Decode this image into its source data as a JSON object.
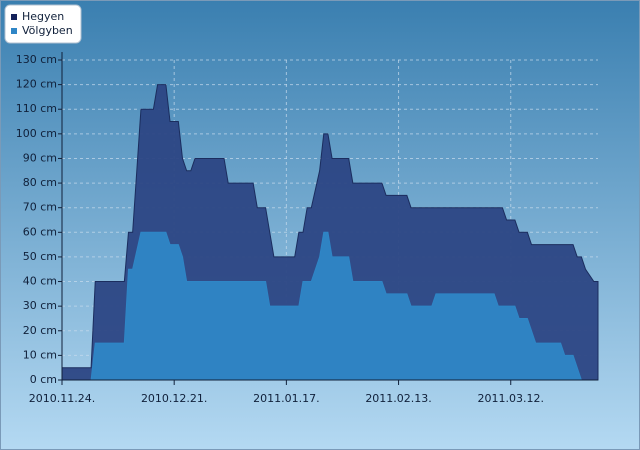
{
  "chart_data": {
    "type": "area",
    "x": [
      "2010-11-24",
      "2010-12-01",
      "2010-12-02",
      "2010-12-09",
      "2010-12-10",
      "2010-12-11",
      "2010-12-13",
      "2010-12-16",
      "2010-12-17",
      "2010-12-19",
      "2010-12-20",
      "2010-12-22",
      "2010-12-23",
      "2010-12-24",
      "2010-12-25",
      "2010-12-26",
      "2011-01-02",
      "2011-01-03",
      "2011-01-09",
      "2011-01-10",
      "2011-01-12",
      "2011-01-13",
      "2011-01-14",
      "2011-01-19",
      "2011-01-20",
      "2011-01-21",
      "2011-01-22",
      "2011-01-23",
      "2011-01-25",
      "2011-01-26",
      "2011-01-27",
      "2011-01-28",
      "2011-02-01",
      "2011-02-02",
      "2011-02-09",
      "2011-02-10",
      "2011-02-15",
      "2011-02-16",
      "2011-02-21",
      "2011-02-22",
      "2011-03-08",
      "2011-03-09",
      "2011-03-10",
      "2011-03-11",
      "2011-03-13",
      "2011-03-14",
      "2011-03-16",
      "2011-03-17",
      "2011-03-18",
      "2011-03-24",
      "2011-03-25",
      "2011-03-27",
      "2011-03-28",
      "2011-03-29",
      "2011-03-30",
      "2011-04-01",
      "2011-04-02"
    ],
    "series": [
      {
        "name": "Hegyen",
        "color": "#2c4684",
        "values": [
          5,
          5,
          40,
          40,
          60,
          60,
          110,
          110,
          120,
          120,
          105,
          105,
          90,
          85,
          85,
          90,
          90,
          80,
          80,
          70,
          70,
          60,
          50,
          50,
          60,
          60,
          70,
          70,
          85,
          100,
          100,
          90,
          90,
          80,
          80,
          75,
          75,
          70,
          70,
          70,
          70,
          70,
          70,
          65,
          65,
          60,
          60,
          55,
          55,
          55,
          55,
          55,
          50,
          50,
          45,
          40,
          40
        ]
      },
      {
        "name": "Völgyben",
        "color": "#2f86c6",
        "values": [
          0,
          0,
          15,
          15,
          45,
          45,
          60,
          60,
          60,
          60,
          55,
          55,
          50,
          40,
          40,
          40,
          40,
          40,
          40,
          40,
          40,
          30,
          30,
          30,
          30,
          40,
          40,
          40,
          50,
          60,
          60,
          50,
          50,
          40,
          40,
          35,
          35,
          30,
          30,
          35,
          35,
          30,
          30,
          30,
          30,
          25,
          25,
          20,
          15,
          15,
          10,
          10,
          5,
          0,
          0,
          0,
          0
        ]
      }
    ],
    "xlim": [
      "2010-11-24",
      "2011-04-02"
    ],
    "xticks": [
      {
        "value": "2010-11-24",
        "label": "2010.11.24."
      },
      {
        "value": "2010-12-21",
        "label": "2010.12.21."
      },
      {
        "value": "2011-01-17",
        "label": "2011.01.17."
      },
      {
        "value": "2011-02-13",
        "label": "2011.02.13."
      },
      {
        "value": "2011-03-12",
        "label": "2011.03.12."
      }
    ],
    "ylim": [
      0,
      130
    ],
    "yticks": [
      {
        "value": 0,
        "label": "0 cm"
      },
      {
        "value": 10,
        "label": "10 cm"
      },
      {
        "value": 20,
        "label": "20 cm"
      },
      {
        "value": 30,
        "label": "30 cm"
      },
      {
        "value": 40,
        "label": "40 cm"
      },
      {
        "value": 50,
        "label": "50 cm"
      },
      {
        "value": 60,
        "label": "60 cm"
      },
      {
        "value": 70,
        "label": "70 cm"
      },
      {
        "value": 80,
        "label": "80 cm"
      },
      {
        "value": 90,
        "label": "90 cm"
      },
      {
        "value": 100,
        "label": "100 cm"
      },
      {
        "value": 110,
        "label": "110 cm"
      },
      {
        "value": 120,
        "label": "120 cm"
      },
      {
        "value": 130,
        "label": "130 cm"
      }
    ],
    "grid": true,
    "legend": "top-left"
  }
}
